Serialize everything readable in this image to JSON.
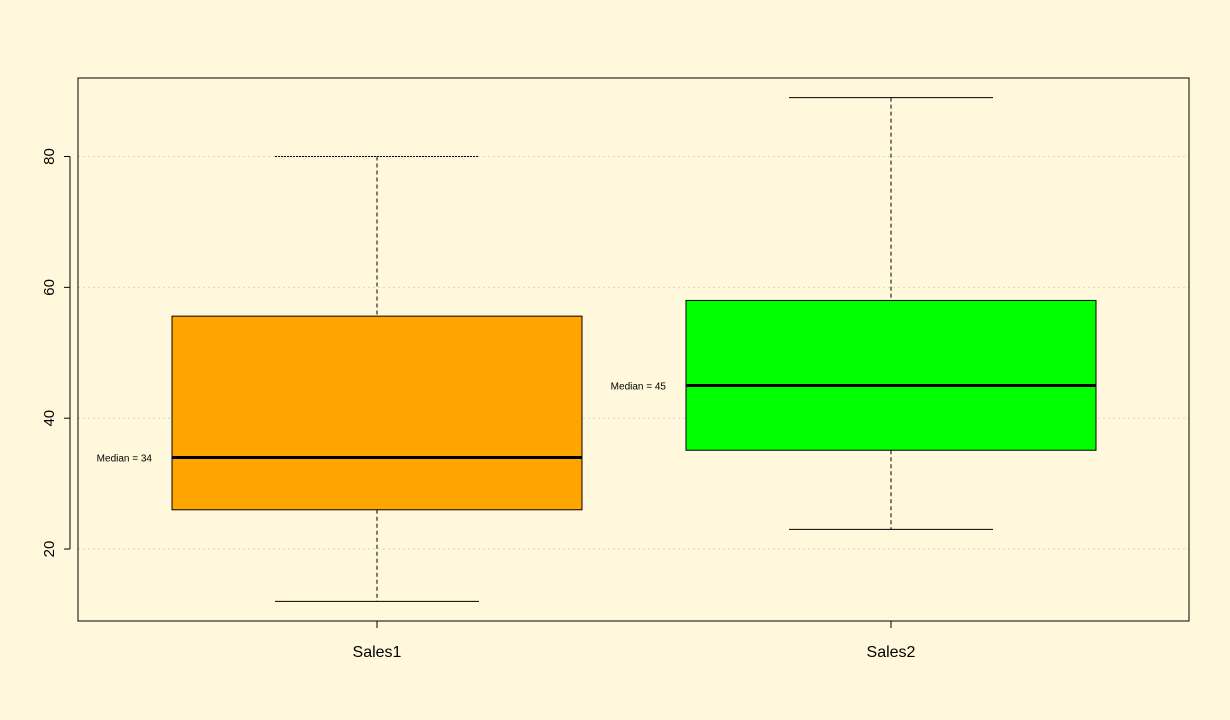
{
  "chart_data": {
    "type": "boxplot",
    "title": "",
    "xlabel": "",
    "ylabel": "",
    "ylim": [
      9,
      92
    ],
    "yticks": [
      20,
      40,
      60,
      80
    ],
    "grid": true,
    "categories": [
      "Sales1",
      "Sales2"
    ],
    "series": [
      {
        "category": "Sales1",
        "min": 12,
        "q1": 26,
        "median": 34,
        "q3": 55.6,
        "max": 80,
        "median_label": "Median = 34"
      },
      {
        "category": "Sales2",
        "min": 23,
        "q1": 35.1,
        "median": 45,
        "q3": 58,
        "max": 89,
        "median_label": "Median = 45"
      }
    ]
  },
  "colors": {
    "background": "#FFF8DC",
    "box_fills": [
      "#FFA500",
      "#00FF00"
    ],
    "grid": "#D3D3D3",
    "stroke": "#000000"
  }
}
